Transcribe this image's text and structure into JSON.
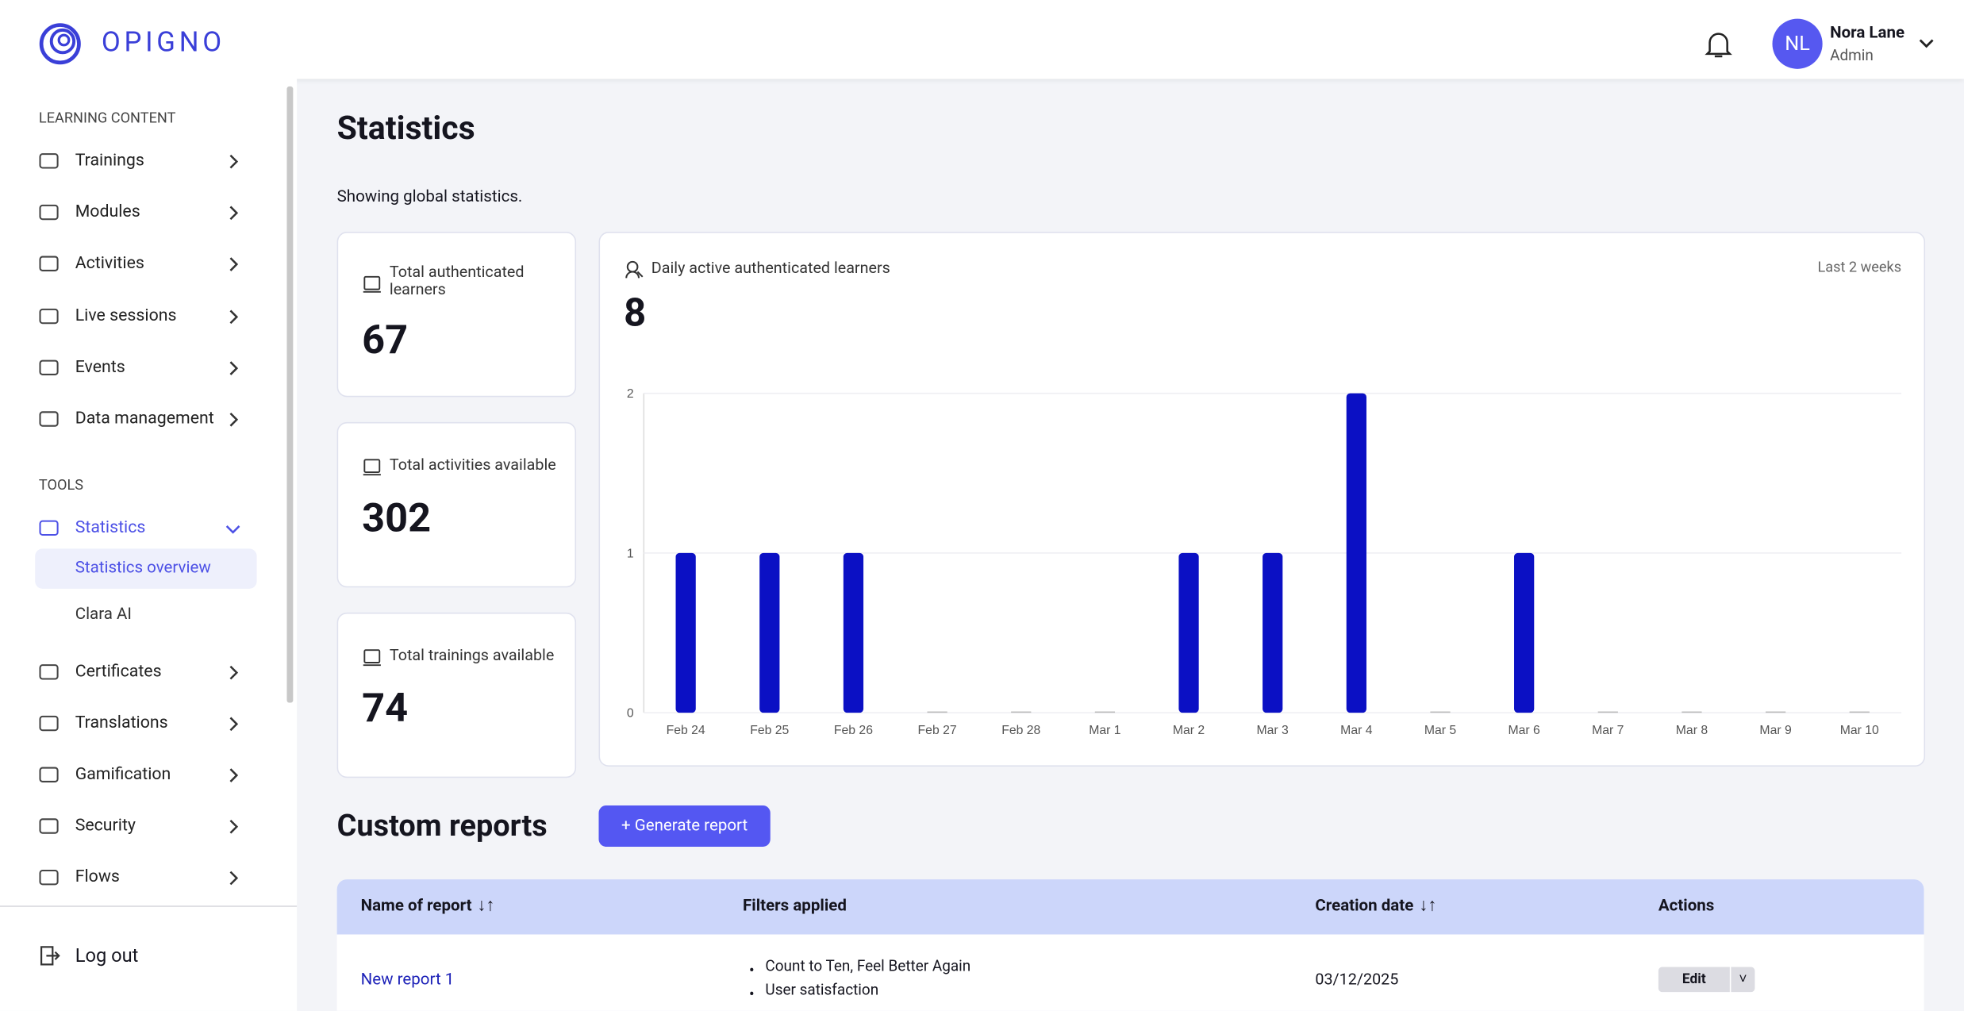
{
  "header": {
    "logo": "OPIGNO",
    "user_initials": "NL",
    "user_name": "Nora Lane",
    "user_role": "Admin"
  },
  "sidebar": {
    "sections": [
      {
        "title": "LEARNING CONTENT",
        "items": [
          {
            "label": "Trainings"
          },
          {
            "label": "Modules"
          },
          {
            "label": "Activities"
          },
          {
            "label": "Live sessions"
          },
          {
            "label": "Events"
          },
          {
            "label": "Data management"
          }
        ]
      },
      {
        "title": "TOOLS",
        "items": [
          {
            "label": "Statistics",
            "children": [
              "Statistics overview",
              "Clara AI"
            ]
          },
          {
            "label": "Certificates"
          },
          {
            "label": "Translations"
          },
          {
            "label": "Gamification"
          },
          {
            "label": "Security"
          },
          {
            "label": "Flows"
          }
        ]
      }
    ],
    "logout": "Log out"
  },
  "main": {
    "title": "Statistics",
    "subtitle": "Showing global statistics.",
    "cards": [
      {
        "label": "Total authenticated learners",
        "value": 67
      },
      {
        "label": "Total activities available",
        "value": 302
      },
      {
        "label": "Total trainings available",
        "value": 74
      }
    ]
  },
  "chart_data": {
    "type": "bar",
    "title": "Daily active authenticated learners",
    "headline": 8,
    "period": "Last 2 weeks",
    "categories": [
      "Feb 24",
      "Feb 25",
      "Feb 26",
      "Feb 27",
      "Feb 28",
      "Mar 1",
      "Mar 2",
      "Mar 3",
      "Mar 4",
      "Mar 5",
      "Mar 6",
      "Mar 7",
      "Mar 8",
      "Mar 9",
      "Mar 10"
    ],
    "values": [
      1,
      1,
      1,
      0,
      0,
      0,
      1,
      1,
      2,
      0,
      1,
      0,
      0,
      0,
      0
    ],
    "color": "#0b10c4",
    "ylim": [
      0,
      2
    ],
    "yticks": [
      0,
      1,
      2
    ],
    "grid": true
  },
  "reports": {
    "title": "Custom reports",
    "button": "+ Generate report",
    "columns": [
      "Name of report",
      "Filters applied",
      "Creation date",
      "Actions"
    ],
    "rows": [
      {
        "name": "New report 1",
        "filters": [
          "Count to Ten, Feel Better Again",
          "User satisfaction"
        ],
        "date": "03/12/2025",
        "action": "Edit"
      }
    ]
  }
}
